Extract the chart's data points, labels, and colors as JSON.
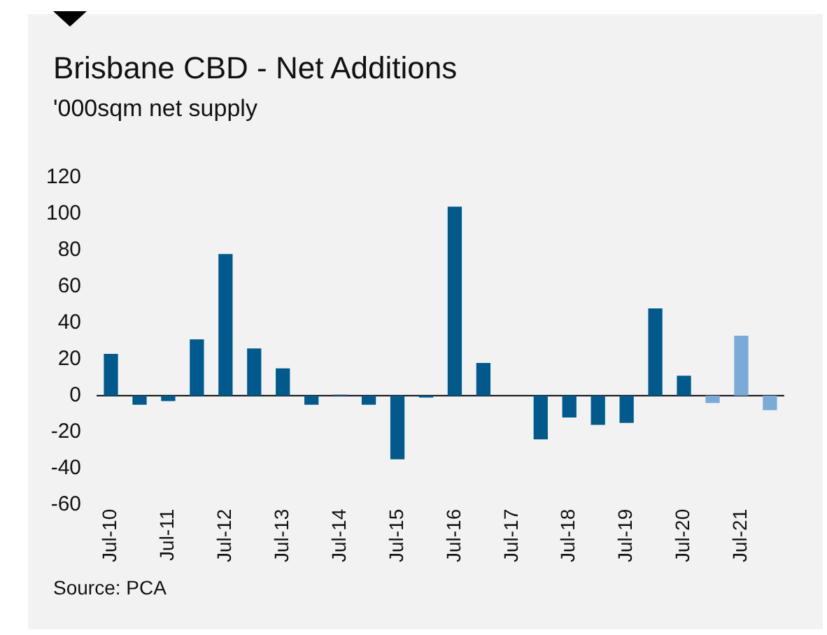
{
  "chart_data": {
    "type": "bar",
    "title": "Brisbane CBD - Net Additions",
    "subtitle": "'000sqm net supply",
    "categories": [
      "Jul-10",
      null,
      "Jul-11",
      null,
      "Jul-12",
      null,
      "Jul-13",
      null,
      "Jul-14",
      null,
      "Jul-15",
      null,
      "Jul-16",
      null,
      "Jul-17",
      null,
      "Jul-18",
      null,
      "Jul-19",
      null,
      "Jul-20",
      null,
      "Jul-21",
      null
    ],
    "values": [
      23,
      -5,
      -3,
      31,
      78,
      26,
      15,
      -5,
      0.5,
      -5,
      -35,
      -1,
      104,
      18,
      0,
      -24,
      -12,
      -16,
      -15,
      48,
      11,
      -4,
      33,
      -8
    ],
    "colors": [
      "#005a8c",
      "#005a8c",
      "#005a8c",
      "#005a8c",
      "#005a8c",
      "#005a8c",
      "#005a8c",
      "#005a8c",
      "#005a8c",
      "#005a8c",
      "#005a8c",
      "#005a8c",
      "#005a8c",
      "#005a8c",
      "#005a8c",
      "#005a8c",
      "#005a8c",
      "#005a8c",
      "#005a8c",
      "#005a8c",
      "#005a8c",
      "#7aaad8",
      "#7aaad8",
      "#7aaad8"
    ],
    "ylim": [
      -60,
      120
    ],
    "yticks": [
      -60,
      -40,
      -20,
      0,
      20,
      40,
      60,
      80,
      100,
      120
    ],
    "grid": false,
    "legend": false,
    "ref_lines": [
      {
        "axis": "y",
        "value": 0,
        "color": "#000000"
      }
    ],
    "annotations": [
      "Source: PCA"
    ]
  }
}
